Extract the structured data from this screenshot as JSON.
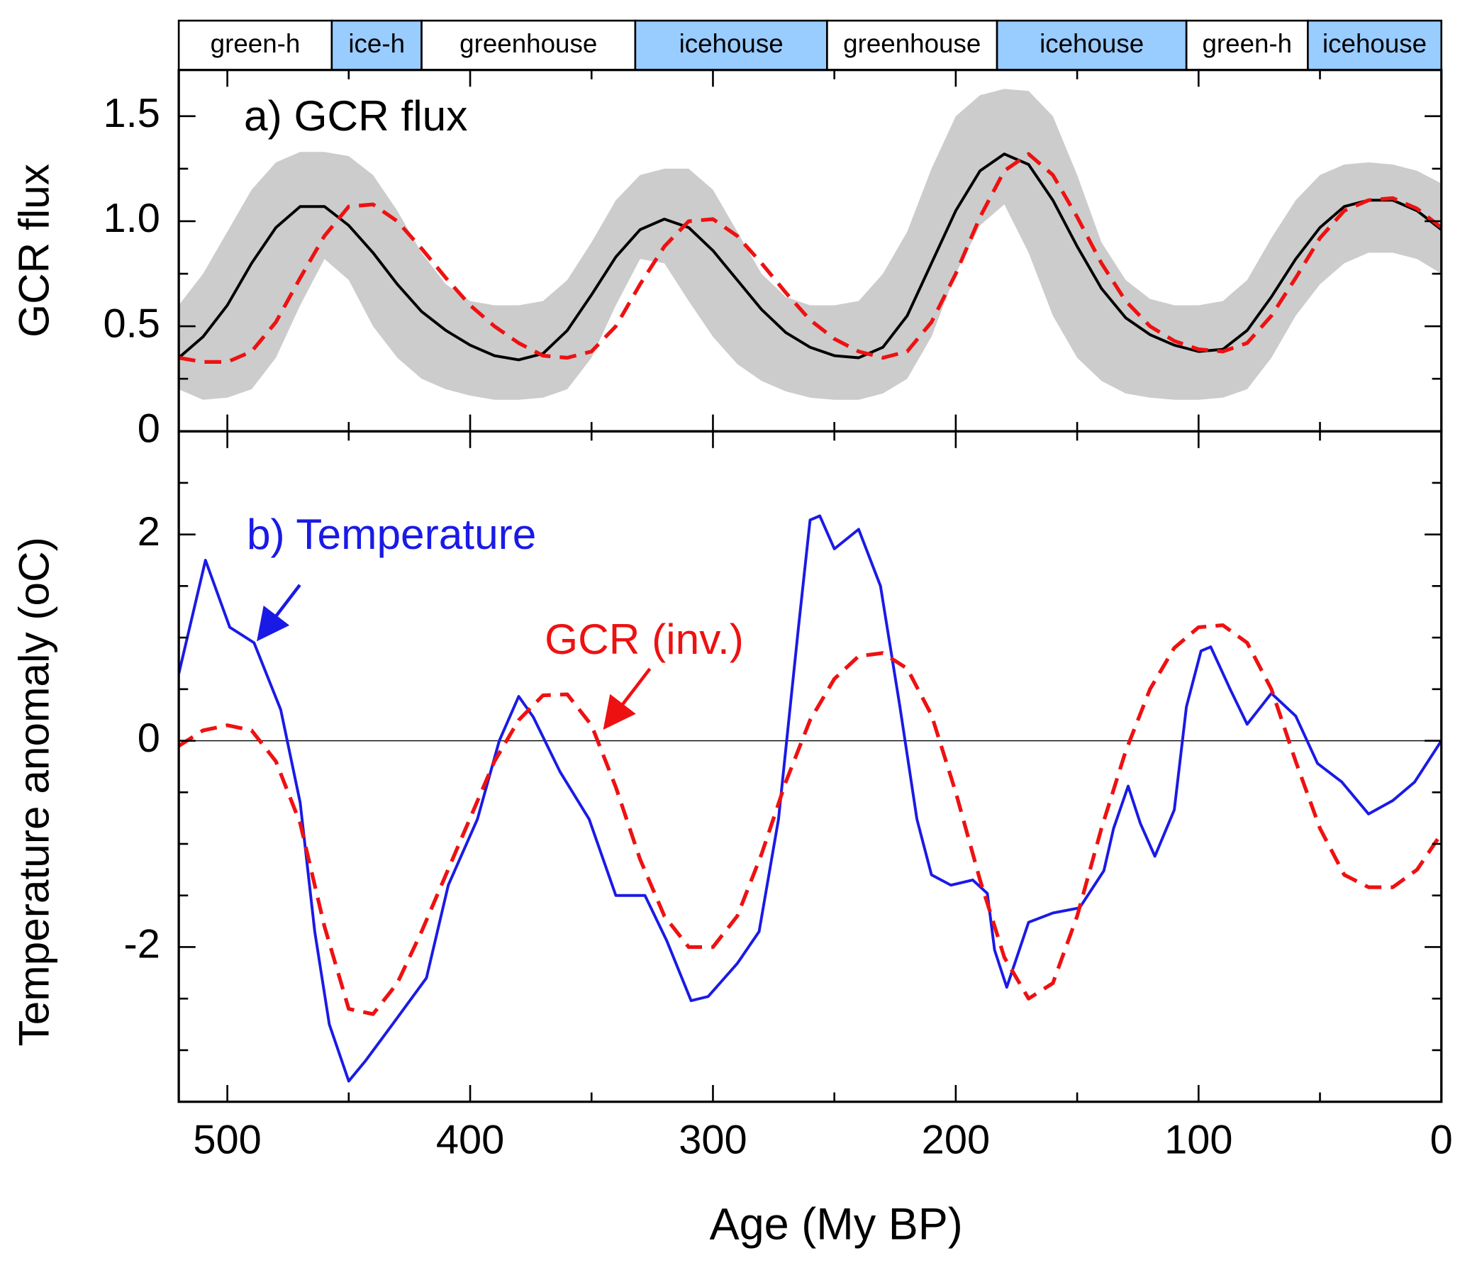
{
  "chart_data": [
    {
      "type": "line",
      "title": "a) GCR flux",
      "ylabel": "GCR flux",
      "xlim": [
        520,
        0
      ],
      "ylim": [
        0,
        1.72
      ],
      "yticks": [
        0,
        0.5,
        {
          "value": 1,
          "label": "1.0"
        },
        1.5
      ],
      "yminorticks": [
        0.25,
        0.75,
        1.25
      ],
      "regimes": [
        {
          "label": "green-h",
          "start": 520,
          "end": 457,
          "color": "#ffffff"
        },
        {
          "label": "ice-h",
          "start": 457,
          "end": 420,
          "color": "#99ccff"
        },
        {
          "label": "greenhouse",
          "start": 420,
          "end": 332,
          "color": "#ffffff"
        },
        {
          "label": "icehouse",
          "start": 332,
          "end": 253,
          "color": "#99ccff"
        },
        {
          "label": "greenhouse",
          "start": 253,
          "end": 183,
          "color": "#ffffff"
        },
        {
          "label": "icehouse",
          "start": 183,
          "end": 105,
          "color": "#99ccff"
        },
        {
          "label": "green-h",
          "start": 105,
          "end": 55,
          "color": "#ffffff"
        },
        {
          "label": "icehouse",
          "start": 55,
          "end": 0,
          "color": "#99ccff"
        }
      ],
      "x": [
        520,
        510,
        500,
        490,
        480,
        470,
        460,
        450,
        440,
        430,
        420,
        410,
        400,
        390,
        380,
        370,
        360,
        350,
        340,
        330,
        320,
        310,
        300,
        290,
        280,
        270,
        260,
        250,
        240,
        230,
        220,
        210,
        200,
        190,
        180,
        170,
        160,
        150,
        140,
        130,
        120,
        110,
        100,
        90,
        80,
        70,
        60,
        50,
        40,
        30,
        20,
        10,
        0
      ],
      "band": {
        "color": "#cccccc",
        "upper": [
          0.6,
          0.75,
          0.95,
          1.15,
          1.28,
          1.33,
          1.33,
          1.31,
          1.22,
          1.05,
          0.85,
          0.7,
          0.62,
          0.6,
          0.6,
          0.62,
          0.72,
          0.9,
          1.1,
          1.22,
          1.25,
          1.25,
          1.15,
          0.95,
          0.75,
          0.64,
          0.6,
          0.6,
          0.62,
          0.75,
          0.95,
          1.25,
          1.5,
          1.6,
          1.63,
          1.62,
          1.5,
          1.22,
          0.9,
          0.72,
          0.63,
          0.6,
          0.6,
          0.62,
          0.72,
          0.92,
          1.1,
          1.22,
          1.27,
          1.28,
          1.27,
          1.24,
          1.18
        ],
        "lower": [
          0.2,
          0.15,
          0.16,
          0.2,
          0.35,
          0.6,
          0.82,
          0.72,
          0.5,
          0.35,
          0.25,
          0.2,
          0.17,
          0.15,
          0.15,
          0.16,
          0.2,
          0.35,
          0.6,
          0.82,
          0.8,
          0.62,
          0.45,
          0.32,
          0.24,
          0.19,
          0.16,
          0.15,
          0.15,
          0.18,
          0.25,
          0.45,
          0.75,
          0.98,
          1.08,
          0.85,
          0.55,
          0.35,
          0.24,
          0.18,
          0.16,
          0.15,
          0.15,
          0.16,
          0.2,
          0.35,
          0.55,
          0.7,
          0.8,
          0.85,
          0.85,
          0.82,
          0.75
        ]
      },
      "series": [
        {
          "color": "#000000",
          "dashed": false,
          "values": [
            0.35,
            0.45,
            0.6,
            0.8,
            0.97,
            1.07,
            1.07,
            0.98,
            0.85,
            0.7,
            0.57,
            0.48,
            0.41,
            0.36,
            0.34,
            0.37,
            0.48,
            0.65,
            0.83,
            0.96,
            1.01,
            0.97,
            0.86,
            0.72,
            0.58,
            0.47,
            0.4,
            0.36,
            0.35,
            0.4,
            0.55,
            0.8,
            1.05,
            1.24,
            1.32,
            1.27,
            1.1,
            0.88,
            0.68,
            0.54,
            0.46,
            0.41,
            0.38,
            0.39,
            0.48,
            0.64,
            0.82,
            0.97,
            1.07,
            1.1,
            1.1,
            1.05,
            0.96
          ]
        },
        {
          "color": "#ee1111",
          "dashed": true,
          "values": [
            0.35,
            0.33,
            0.33,
            0.38,
            0.52,
            0.73,
            0.93,
            1.07,
            1.08,
            1.0,
            0.87,
            0.73,
            0.6,
            0.5,
            0.42,
            0.36,
            0.35,
            0.38,
            0.5,
            0.7,
            0.88,
            1.0,
            1.01,
            0.93,
            0.8,
            0.66,
            0.53,
            0.44,
            0.38,
            0.35,
            0.38,
            0.52,
            0.75,
            1.02,
            1.24,
            1.32,
            1.22,
            1.02,
            0.8,
            0.62,
            0.5,
            0.43,
            0.39,
            0.38,
            0.42,
            0.55,
            0.73,
            0.92,
            1.05,
            1.1,
            1.11,
            1.06,
            0.97
          ]
        }
      ]
    },
    {
      "type": "line",
      "xlabel": "Age (My BP)",
      "ylabel": "Temperature anomaly (oC)",
      "xlim": [
        520,
        0
      ],
      "ylim": [
        -3.5,
        3
      ],
      "xticks": [
        500,
        400,
        300,
        200,
        100,
        0
      ],
      "xminorticks": [
        450,
        350,
        250,
        150,
        50
      ],
      "yticks": [
        -2,
        0,
        2
      ],
      "yminorticks": [
        -3,
        -2.5,
        -1.5,
        -1,
        -0.5,
        0.5,
        1,
        1.5,
        2.5
      ],
      "zero_line": true,
      "annotations": [
        {
          "text": "b) Temperature",
          "color": "#1a1ae6"
        },
        {
          "text": "GCR (inv.)",
          "color": "#ee1111"
        }
      ],
      "series": [
        {
          "color": "#1a1ae6",
          "dashed": false,
          "x": [
            520,
            509,
            499,
            489,
            478,
            470,
            464,
            458,
            450,
            443,
            432,
            418,
            409,
            397,
            388,
            380,
            374,
            363,
            351,
            340,
            328,
            319,
            309,
            302,
            290,
            281,
            273,
            265,
            260,
            256,
            250,
            240,
            231,
            223,
            216,
            210,
            202,
            193,
            187,
            184,
            179,
            170,
            160,
            149,
            139,
            135,
            129,
            124,
            118,
            110,
            105,
            99,
            95,
            87,
            80,
            70,
            60,
            51,
            41,
            30,
            20,
            11,
            0
          ],
          "values": [
            0.65,
            1.75,
            1.1,
            0.95,
            0.3,
            -0.6,
            -1.85,
            -2.75,
            -3.3,
            -3.1,
            -2.75,
            -2.3,
            -1.4,
            -0.76,
            0,
            0.43,
            0.23,
            -0.3,
            -0.76,
            -1.5,
            -1.5,
            -1.94,
            -2.52,
            -2.48,
            -2.16,
            -1.85,
            -0.76,
            1.05,
            2.14,
            2.18,
            1.86,
            2.05,
            1.5,
            0.33,
            -0.76,
            -1.3,
            -1.4,
            -1.35,
            -1.48,
            -2.03,
            -2.39,
            -1.76,
            -1.67,
            -1.62,
            -1.26,
            -0.85,
            -0.44,
            -0.8,
            -1.12,
            -0.67,
            0.33,
            0.87,
            0.91,
            0.5,
            0.16,
            0.46,
            0.24,
            -0.22,
            -0.4,
            -0.71,
            -0.58,
            -0.4,
            0
          ]
        },
        {
          "color": "#ee1111",
          "dashed": true,
          "x": [
            520,
            510,
            500,
            490,
            480,
            470,
            460,
            450,
            440,
            430,
            420,
            410,
            400,
            390,
            380,
            370,
            360,
            350,
            340,
            330,
            320,
            310,
            300,
            290,
            280,
            270,
            260,
            250,
            240,
            230,
            220,
            210,
            200,
            190,
            180,
            170,
            160,
            150,
            140,
            130,
            120,
            110,
            100,
            90,
            80,
            70,
            60,
            50,
            40,
            30,
            20,
            10,
            0
          ],
          "values": [
            -0.05,
            0.1,
            0.15,
            0.1,
            -0.2,
            -0.8,
            -1.8,
            -2.6,
            -2.65,
            -2.35,
            -1.85,
            -1.3,
            -0.75,
            -0.2,
            0.2,
            0.44,
            0.45,
            0.15,
            -0.45,
            -1.15,
            -1.7,
            -2.0,
            -2.0,
            -1.7,
            -1.1,
            -0.4,
            0.2,
            0.6,
            0.82,
            0.85,
            0.7,
            0.25,
            -0.5,
            -1.35,
            -2.1,
            -2.5,
            -2.35,
            -1.7,
            -0.85,
            -0.1,
            0.5,
            0.9,
            1.1,
            1.12,
            0.95,
            0.5,
            -0.2,
            -0.85,
            -1.3,
            -1.42,
            -1.42,
            -1.25,
            -0.9
          ]
        }
      ]
    }
  ]
}
